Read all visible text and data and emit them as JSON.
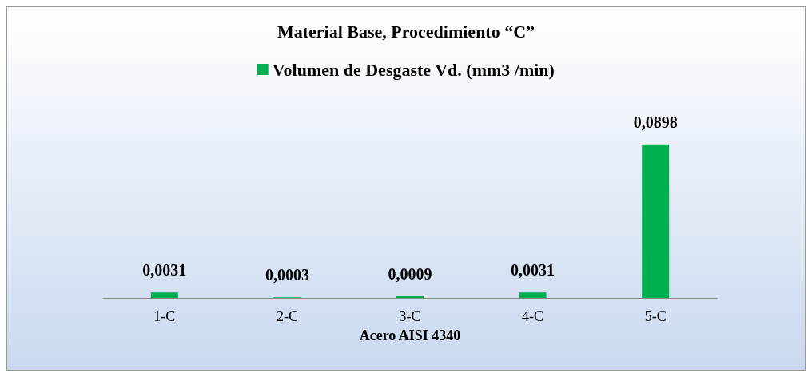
{
  "chart_data": {
    "type": "bar",
    "title": "Material Base, Procedimiento “C”",
    "xlabel": "Acero AISI 4340",
    "categories": [
      "1-C",
      "2-C",
      "3-C",
      "4-C",
      "5-C"
    ],
    "series": [
      {
        "name": "Volumen de Desgaste Vd. (mm3 /min)",
        "color": "#00b050",
        "values": [
          0.0031,
          0.0003,
          0.0009,
          0.0031,
          0.0898
        ],
        "value_labels": [
          "0,0031",
          "0,0003",
          "0,0009",
          "0,0031",
          "0,0898"
        ]
      }
    ],
    "legend": "top",
    "grid": false
  }
}
